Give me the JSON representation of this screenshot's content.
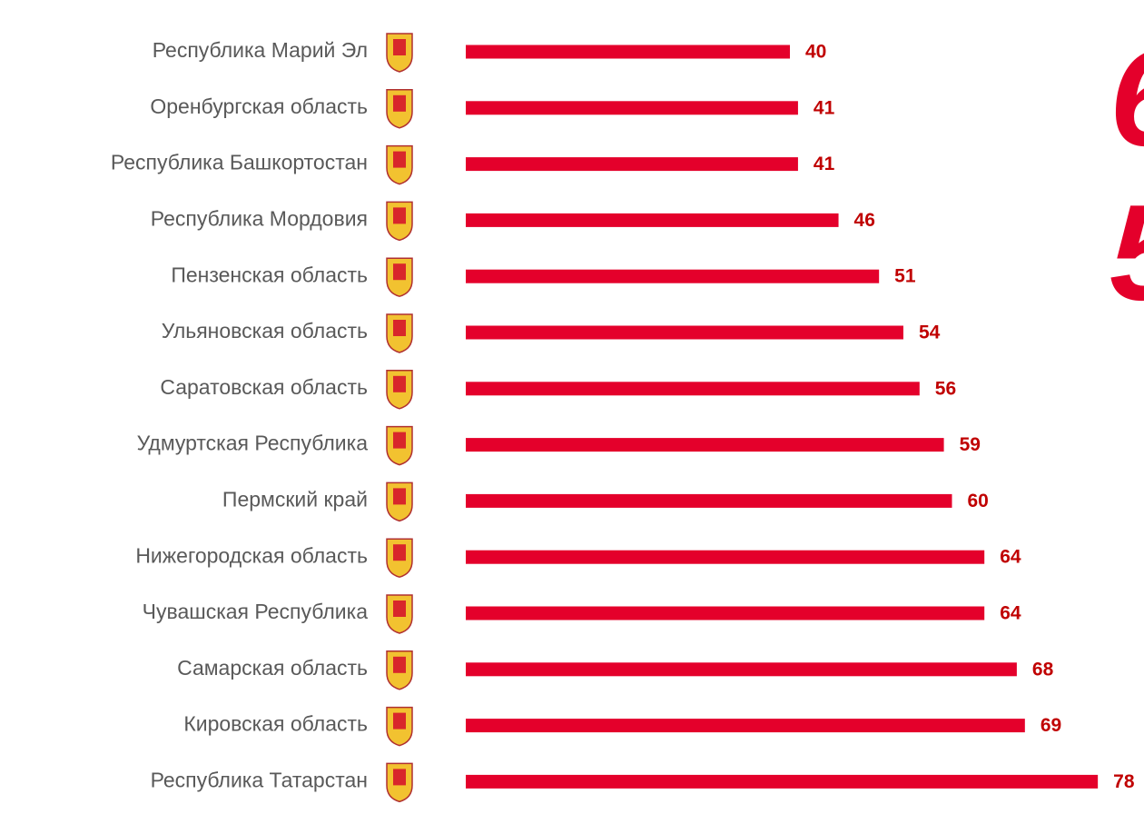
{
  "chart_data": {
    "type": "bar",
    "orientation": "horizontal",
    "categories": [
      "Республика Марий Эл",
      "Оренбургская область",
      "Республика Башкортостан",
      "Республика Мордовия",
      "Пензенская область",
      "Ульяновская область",
      "Саратовская область",
      "Удмуртская Республика",
      "Пермский край",
      "Нижегородская область",
      "Чувашская Республика",
      "Самарская область",
      "Кировская область",
      "Республика Татарстан"
    ],
    "values": [
      40,
      41,
      41,
      46,
      51,
      54,
      56,
      59,
      60,
      64,
      64,
      68,
      69,
      78
    ],
    "color": "#e4002b",
    "annotations": [
      "6",
      "5"
    ]
  }
}
